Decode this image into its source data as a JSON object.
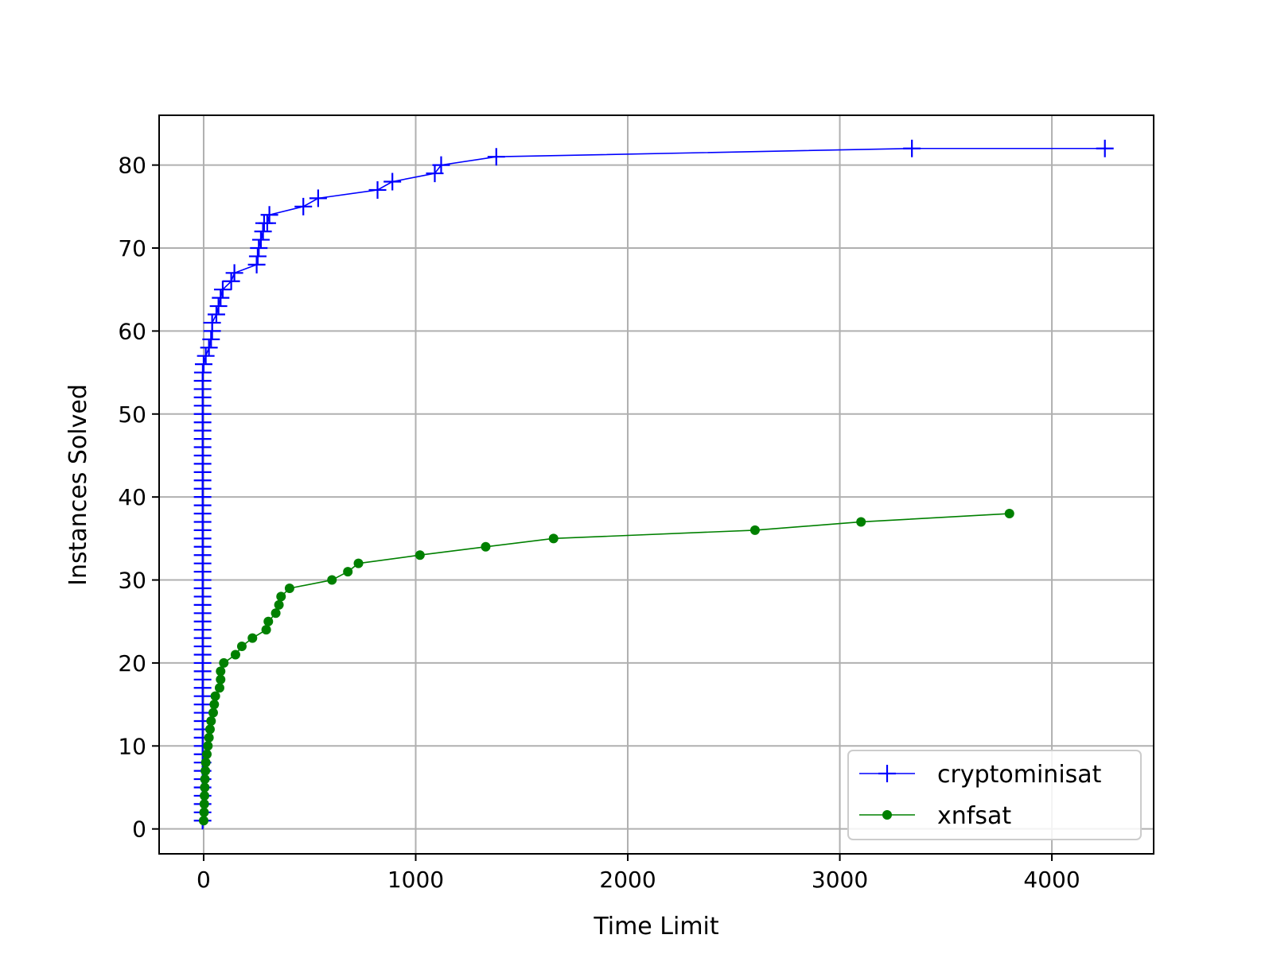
{
  "chart_data": {
    "type": "line",
    "xlabel": "Time Limit",
    "ylabel": "Instances Solved",
    "xlim": [
      -210,
      4480
    ],
    "ylim": [
      -3,
      86
    ],
    "xticks": [
      0,
      1000,
      2000,
      3000,
      4000
    ],
    "yticks": [
      0,
      10,
      20,
      30,
      40,
      50,
      60,
      70,
      80
    ],
    "grid": true,
    "legend_position": "lower-right",
    "series": [
      {
        "name": "cryptominisat",
        "color": "#0000ff",
        "marker": "plus",
        "x": [
          -5,
          -5,
          -5,
          -5,
          -5,
          -5,
          -5,
          -5,
          -5,
          -5,
          -5,
          -5,
          -5,
          -5,
          -5,
          -5,
          -5,
          -5,
          -5,
          -5,
          -5,
          -5,
          -5,
          -5,
          -5,
          -5,
          -5,
          -5,
          -5,
          -5,
          -5,
          -5,
          -5,
          -5,
          -5,
          -5,
          -5,
          -5,
          -5,
          -5,
          -5,
          -5,
          -5,
          -5,
          -5,
          -5,
          -5,
          -5,
          -5,
          -5,
          -5,
          -5,
          -5,
          -5,
          -4,
          0,
          10,
          25,
          35,
          40,
          40,
          60,
          70,
          80,
          90,
          130,
          145,
          250,
          255,
          260,
          270,
          280,
          285,
          300,
          310,
          470,
          540,
          820,
          890,
          1090,
          1120,
          1380,
          3340,
          4250
        ],
        "y": [
          1,
          2,
          3,
          4,
          5,
          6,
          7,
          8,
          9,
          10,
          11,
          12,
          13,
          14,
          15,
          16,
          17,
          18,
          19,
          20,
          21,
          22,
          23,
          24,
          25,
          26,
          27,
          28,
          29,
          30,
          31,
          32,
          33,
          34,
          35,
          36,
          37,
          38,
          39,
          40,
          41,
          42,
          43,
          44,
          45,
          46,
          47,
          48,
          49,
          50,
          51,
          52,
          53,
          54,
          55,
          56,
          57,
          58,
          59,
          60,
          61,
          62,
          63,
          64,
          65,
          66,
          67,
          68,
          69,
          70,
          71,
          72,
          73,
          73,
          74,
          75,
          76,
          77,
          78,
          79,
          80,
          81,
          82,
          82
        ]
      },
      {
        "name": "xnfsat",
        "color": "#008000",
        "marker": "circle",
        "x": [
          0,
          2,
          3,
          4,
          5,
          6,
          8,
          10,
          15,
          20,
          25,
          30,
          35,
          45,
          50,
          55,
          75,
          80,
          80,
          95,
          150,
          180,
          230,
          295,
          305,
          340,
          355,
          365,
          405,
          605,
          680,
          730,
          1020,
          1330,
          1650,
          2600,
          3100,
          3800
        ],
        "y": [
          1,
          2,
          3,
          4,
          5,
          6,
          7,
          8,
          9,
          10,
          11,
          12,
          13,
          14,
          15,
          16,
          17,
          18,
          19,
          20,
          21,
          22,
          23,
          24,
          25,
          26,
          27,
          28,
          29,
          30,
          31,
          32,
          33,
          34,
          35,
          36,
          37,
          38
        ]
      }
    ]
  }
}
